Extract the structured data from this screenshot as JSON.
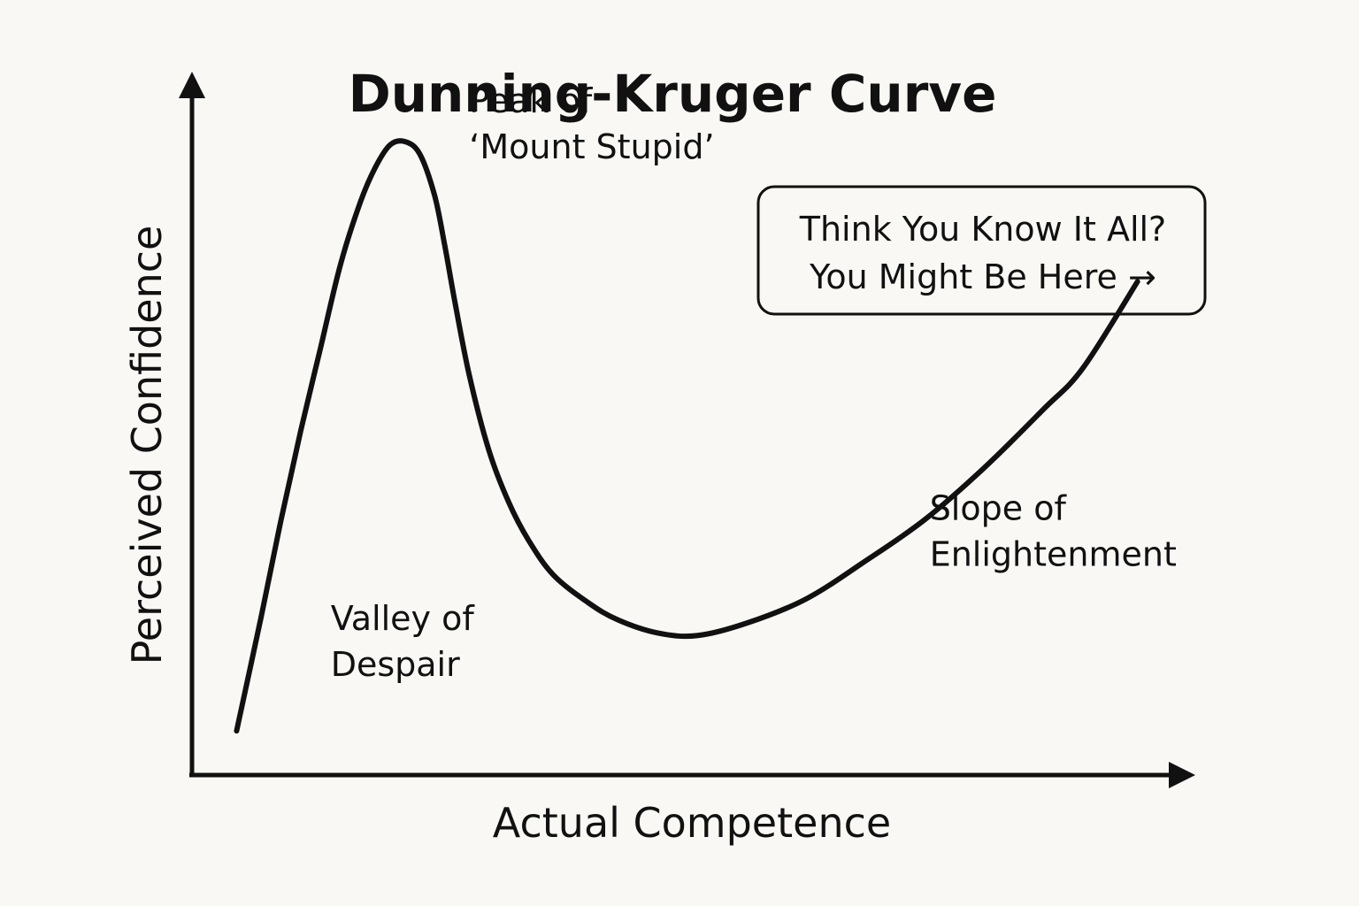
{
  "chart_data": {
    "type": "line",
    "title": "Dunning-Kruger Curve",
    "xlabel": "Actual Competence",
    "ylabel": "Perceived Confidence",
    "x_ticks": "none",
    "y_ticks": "none",
    "grid": false,
    "legend": "none",
    "xlim": [
      0,
      100
    ],
    "ylim": [
      0,
      100
    ],
    "series": [
      {
        "color": "#111111",
        "x": [
          4.5,
          7,
          9,
          11,
          13,
          15,
          17,
          18.5,
          20,
          21.5,
          23,
          24.5,
          25.5,
          26.5,
          28,
          30,
          32,
          34,
          36.5,
          40,
          43,
          47,
          51,
          56,
          62,
          68,
          74,
          80,
          86,
          90,
          95.5
        ],
        "y": [
          6.4,
          23,
          37,
          50,
          62,
          74,
          83,
          88,
          91.3,
          91.8,
          90,
          84,
          77,
          69,
          58,
          47,
          39.5,
          34,
          29,
          25,
          22.5,
          20.6,
          20.2,
          22,
          25.5,
          31,
          37,
          44.5,
          53,
          59,
          71.5
        ]
      }
    ],
    "annotations": [
      {
        "lines": [
          "Peak of",
          "‘Mount Stupid’"
        ],
        "x": 28,
        "y": 96
      },
      {
        "lines": [
          "Valley of",
          "Despair"
        ],
        "x": 14,
        "y": 21
      },
      {
        "lines": [
          "Slope of",
          "Enlightenment"
        ],
        "x": 74.5,
        "y": 37
      }
    ],
    "callout": {
      "lines": [
        "Think You Know It All?",
        "You Might Be Here →"
      ]
    }
  }
}
